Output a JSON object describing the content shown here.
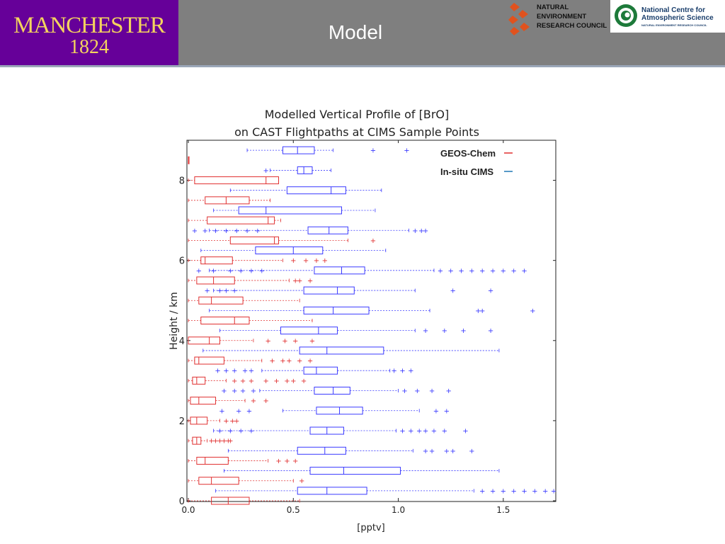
{
  "header": {
    "title": "Model",
    "university_name": "MANCHESTER",
    "university_year": "1824",
    "nerc_lines": [
      "NATURAL",
      "ENVIRONMENT",
      "RESEARCH COUNCIL"
    ],
    "ncas_lines": [
      "National Centre for",
      "Atmospheric Science"
    ],
    "ncas_sub": "NATURAL ENVIRONMENT RESEARCH COUNCIL",
    "colors": {
      "header_bg": "#7f7f7f",
      "university_purple": "#660099",
      "university_gold": "#f4d35e",
      "nerc_red": "#e0521e",
      "ncas_green": "#1d7a3a"
    }
  },
  "chart_data": {
    "type": "box",
    "title": [
      "Modelled Vertical Profile of [BrO]",
      "on CAST Flightpaths at CIMS Sample Points"
    ],
    "xlabel": "[pptv]",
    "ylabel": "Height / km",
    "xlim": [
      0,
      1.75
    ],
    "ylim": [
      0,
      9
    ],
    "xticks": [
      0.0,
      0.5,
      1.0,
      1.5
    ],
    "xtick_labels": [
      "0.0",
      "0.5",
      "1.0",
      "1.5"
    ],
    "yticks": [
      0,
      2,
      4,
      6,
      8
    ],
    "ytick_labels": [
      "0",
      "2",
      "4",
      "6",
      "8"
    ],
    "grid": false,
    "legend_position": "top-right",
    "series": [
      {
        "name": "GEOS-Chem",
        "color": "#e03030",
        "boxes": [
          {
            "height": 0.0,
            "wlo": 0.0,
            "q1": 0.11,
            "med": 0.19,
            "q3": 0.29,
            "whi": 0.53,
            "outliers": []
          },
          {
            "height": 0.5,
            "wlo": 0.0,
            "q1": 0.05,
            "med": 0.11,
            "q3": 0.24,
            "whi": 0.5,
            "outliers": [
              0.54
            ]
          },
          {
            "height": 1.0,
            "wlo": 0.0,
            "q1": 0.04,
            "med": 0.08,
            "q3": 0.19,
            "whi": 0.38,
            "outliers": [
              0.43,
              0.47,
              0.51
            ]
          },
          {
            "height": 1.5,
            "wlo": 0.0,
            "q1": 0.02,
            "med": 0.04,
            "q3": 0.06,
            "whi": 0.09,
            "outliers": [
              0.11,
              0.13,
              0.15,
              0.17,
              0.19,
              0.2
            ]
          },
          {
            "height": 2.0,
            "wlo": 0.0,
            "q1": 0.01,
            "med": 0.04,
            "q3": 0.09,
            "whi": 0.15,
            "outliers": [
              0.18,
              0.21,
              0.23
            ]
          },
          {
            "height": 2.5,
            "wlo": 0.0,
            "q1": 0.01,
            "med": 0.05,
            "q3": 0.13,
            "whi": 0.27,
            "outliers": [
              0.31,
              0.37
            ]
          },
          {
            "height": 3.0,
            "wlo": 0.0,
            "q1": 0.02,
            "med": 0.04,
            "q3": 0.08,
            "whi": 0.18,
            "outliers": [
              0.22,
              0.26,
              0.3,
              0.37,
              0.42,
              0.47,
              0.5,
              0.55
            ]
          },
          {
            "height": 3.5,
            "wlo": 0.0,
            "q1": 0.03,
            "med": 0.05,
            "q3": 0.17,
            "whi": 0.35,
            "outliers": [
              0.4,
              0.45,
              0.48,
              0.53,
              0.58
            ]
          },
          {
            "height": 4.0,
            "wlo": 0.0,
            "q1": 0.0,
            "med": 0.1,
            "q3": 0.15,
            "whi": 0.31,
            "outliers": [
              0.38,
              0.46,
              0.51,
              0.59
            ]
          },
          {
            "height": 4.5,
            "wlo": 0.0,
            "q1": 0.06,
            "med": 0.22,
            "q3": 0.29,
            "whi": 0.59,
            "outliers": []
          },
          {
            "height": 5.0,
            "wlo": 0.0,
            "q1": 0.05,
            "med": 0.11,
            "q3": 0.26,
            "whi": 0.53,
            "outliers": []
          },
          {
            "height": 5.5,
            "wlo": 0.0,
            "q1": 0.04,
            "med": 0.12,
            "q3": 0.22,
            "whi": 0.48,
            "outliers": [
              0.51,
              0.53,
              0.58
            ]
          },
          {
            "height": 6.0,
            "wlo": 0.0,
            "q1": 0.06,
            "med": 0.08,
            "q3": 0.21,
            "whi": 0.45,
            "outliers": [
              0.5,
              0.56,
              0.61,
              0.65
            ]
          },
          {
            "height": 6.5,
            "wlo": 0.0,
            "q1": 0.2,
            "med": 0.41,
            "q3": 0.43,
            "whi": 0.76,
            "outliers": [
              0.88
            ]
          },
          {
            "height": 7.0,
            "wlo": 0.0,
            "q1": 0.09,
            "med": 0.38,
            "q3": 0.41,
            "whi": 0.44,
            "outliers": []
          },
          {
            "height": 7.5,
            "wlo": 0.0,
            "q1": 0.08,
            "med": 0.18,
            "q3": 0.29,
            "whi": 0.39,
            "outliers": []
          },
          {
            "height": 8.0,
            "wlo": 0.0,
            "q1": 0.03,
            "med": 0.37,
            "q3": 0.43,
            "whi": 0.43,
            "outliers": []
          },
          {
            "height": 8.5,
            "wlo": 0.0,
            "q1": 0.0,
            "med": 0.0,
            "q3": 0.0,
            "whi": 0.0,
            "outliers": []
          }
        ]
      },
      {
        "name": "In-situ CIMS",
        "color": "#3a3aff",
        "boxes": [
          {
            "height": 0.25,
            "wlo": 0.13,
            "q1": 0.52,
            "med": 0.66,
            "q3": 0.85,
            "whi": 1.36,
            "outliers": [
              1.4,
              1.45,
              1.5,
              1.55,
              1.6,
              1.65,
              1.7,
              1.74
            ]
          },
          {
            "height": 0.75,
            "wlo": 0.17,
            "q1": 0.58,
            "med": 0.74,
            "q3": 1.01,
            "whi": 1.48,
            "outliers": []
          },
          {
            "height": 1.25,
            "wlo": 0.19,
            "q1": 0.52,
            "med": 0.65,
            "q3": 0.75,
            "whi": 1.07,
            "outliers": [
              1.13,
              1.16,
              1.23,
              1.26,
              1.35
            ]
          },
          {
            "height": 1.75,
            "wlo": 0.12,
            "q1": 0.58,
            "med": 0.66,
            "q3": 0.74,
            "whi": 0.99,
            "outliers": [
              0.15,
              0.2,
              0.25,
              0.3,
              1.02,
              1.06,
              1.1,
              1.13,
              1.17,
              1.22,
              1.32
            ]
          },
          {
            "height": 2.25,
            "wlo": 0.45,
            "q1": 0.61,
            "med": 0.72,
            "q3": 0.83,
            "whi": 1.1,
            "outliers": [
              0.16,
              0.24,
              0.29,
              1.18,
              1.23
            ]
          },
          {
            "height": 2.75,
            "wlo": 0.34,
            "q1": 0.6,
            "med": 0.69,
            "q3": 0.77,
            "whi": 1.0,
            "outliers": [
              0.17,
              0.22,
              0.26,
              0.31,
              1.03,
              1.09,
              1.16,
              1.24
            ]
          },
          {
            "height": 3.25,
            "wlo": 0.35,
            "q1": 0.55,
            "med": 0.61,
            "q3": 0.71,
            "whi": 0.96,
            "outliers": [
              0.14,
              0.18,
              0.22,
              0.27,
              0.3,
              0.98,
              1.02,
              1.06
            ]
          },
          {
            "height": 3.75,
            "wlo": 0.07,
            "q1": 0.53,
            "med": 0.66,
            "q3": 0.93,
            "whi": 1.48,
            "outliers": []
          },
          {
            "height": 4.25,
            "wlo": 0.15,
            "q1": 0.44,
            "med": 0.62,
            "q3": 0.71,
            "whi": 1.08,
            "outliers": [
              1.13,
              1.22,
              1.31,
              1.44
            ]
          },
          {
            "height": 4.75,
            "wlo": 0.1,
            "q1": 0.55,
            "med": 0.69,
            "q3": 0.86,
            "whi": 1.15,
            "outliers": [
              1.38,
              1.4,
              1.64
            ]
          },
          {
            "height": 5.25,
            "wlo": 0.12,
            "q1": 0.55,
            "med": 0.71,
            "q3": 0.79,
            "whi": 1.08,
            "outliers": [
              0.09,
              0.15,
              0.18,
              0.22,
              1.26,
              1.44
            ]
          },
          {
            "height": 5.75,
            "wlo": 0.1,
            "q1": 0.6,
            "med": 0.73,
            "q3": 0.84,
            "whi": 1.17,
            "outliers": [
              0.05,
              0.12,
              0.2,
              0.25,
              0.3,
              0.35,
              1.2,
              1.25,
              1.3,
              1.35,
              1.4,
              1.45,
              1.5,
              1.55,
              1.6
            ]
          },
          {
            "height": 6.25,
            "wlo": 0.06,
            "q1": 0.32,
            "med": 0.5,
            "q3": 0.64,
            "whi": 0.94,
            "outliers": []
          },
          {
            "height": 6.75,
            "wlo": 0.1,
            "q1": 0.57,
            "med": 0.67,
            "q3": 0.76,
            "whi": 1.05,
            "outliers": [
              0.03,
              0.08,
              0.13,
              0.18,
              0.23,
              0.28,
              0.33,
              1.08,
              1.11,
              1.13
            ]
          },
          {
            "height": 7.25,
            "wlo": 0.12,
            "q1": 0.24,
            "med": 0.37,
            "q3": 0.73,
            "whi": 0.89,
            "outliers": []
          },
          {
            "height": 7.75,
            "wlo": 0.2,
            "q1": 0.47,
            "med": 0.68,
            "q3": 0.75,
            "whi": 0.92,
            "outliers": []
          },
          {
            "height": 8.25,
            "wlo": 0.39,
            "q1": 0.52,
            "med": 0.55,
            "q3": 0.59,
            "whi": 0.68,
            "outliers": [
              0.37
            ]
          },
          {
            "height": 8.75,
            "wlo": 0.28,
            "q1": 0.45,
            "med": 0.52,
            "q3": 0.6,
            "whi": 0.69,
            "outliers": [
              0.88,
              1.04
            ]
          }
        ]
      }
    ]
  }
}
